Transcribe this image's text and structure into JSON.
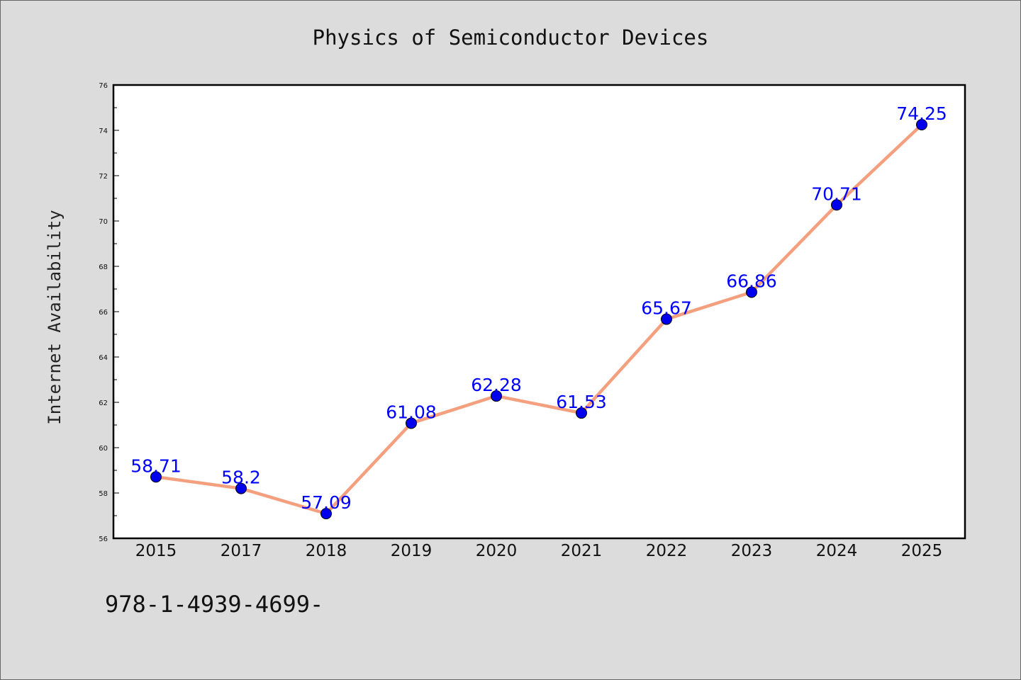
{
  "chart_data": {
    "type": "line",
    "title": "Physics of Semiconductor Devices",
    "ylabel": "Internet Availability",
    "xlabel": "",
    "categories": [
      "2015",
      "2017",
      "2018",
      "2019",
      "2020",
      "2021",
      "2022",
      "2023",
      "2024",
      "2025"
    ],
    "series": [
      {
        "values": [
          58.71,
          58.2,
          57.09,
          61.08,
          62.28,
          61.53,
          65.67,
          66.86,
          70.71,
          74.25
        ],
        "labels": [
          "58.71",
          "58.2",
          "57.09",
          "61.08",
          "62.28",
          "61.53",
          "65.67",
          "66.86",
          "70.71",
          "74.25"
        ]
      }
    ],
    "ylim": [
      56,
      76
    ],
    "yticks": [
      "56",
      "58",
      "60",
      "62",
      "64",
      "66",
      "68",
      "70",
      "72",
      "74",
      "76"
    ],
    "grid": false,
    "legend": "none"
  },
  "footer": {
    "isbn": "978-1-4939-4699-"
  },
  "colors": {
    "background": "#dcdcdc",
    "plot_background": "#ffffff",
    "line": "#f4a07e",
    "marker": "#0000ee",
    "label": "#0000ff",
    "axis": "#000000"
  }
}
